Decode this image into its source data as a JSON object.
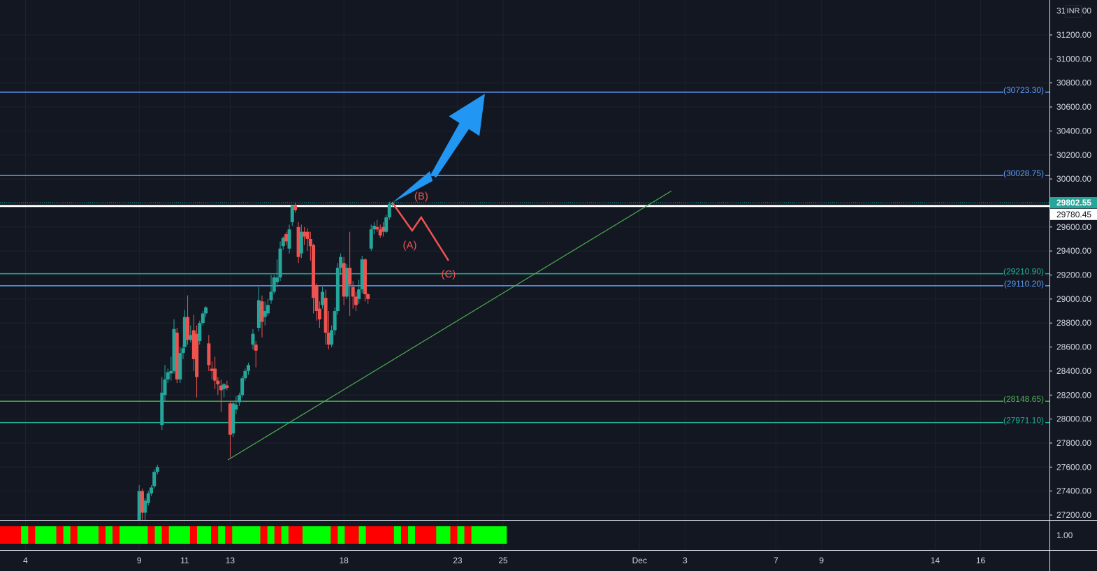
{
  "chart_data": {
    "type": "candlestick",
    "currency": "INR",
    "y_axis": {
      "min": 27150,
      "max": 31350,
      "ticks": [
        27200,
        27400,
        27600,
        27800,
        28000,
        28200,
        28400,
        28600,
        28800,
        29000,
        29200,
        29400,
        29600,
        29800,
        30000,
        30200,
        30400,
        30600,
        30800,
        31000,
        31200
      ],
      "tick_labels": [
        "27200.00",
        "27400.00",
        "27600.00",
        "27800.00",
        "28000.00",
        "28200.00",
        "28400.00",
        "28600.00",
        "28800.00",
        "29000.00",
        "29200.00",
        "29400.00",
        "29600.00",
        "29800.00",
        "30000.00",
        "30200.00",
        "30400.00",
        "30600.00",
        "30800.00",
        "31000.00",
        "31200.00"
      ],
      "top_label": "31400.00"
    },
    "x_axis": {
      "ticks": [
        {
          "label": "4",
          "day": 4
        },
        {
          "label": "9",
          "day": 9
        },
        {
          "label": "11",
          "day": 11
        },
        {
          "label": "13",
          "day": 13
        },
        {
          "label": "18",
          "day": 18
        },
        {
          "label": "23",
          "day": 23
        },
        {
          "label": "25",
          "day": 25
        },
        {
          "label": "Dec",
          "day": 31
        },
        {
          "label": "3",
          "day": 33
        },
        {
          "label": "7",
          "day": 37
        },
        {
          "label": "9",
          "day": 39
        },
        {
          "label": "14",
          "day": 44
        },
        {
          "label": "16",
          "day": 46
        }
      ]
    },
    "horizontal_levels": [
      {
        "value": 30723.3,
        "label": "(30723.30)",
        "color": "#5b9cf6"
      },
      {
        "value": 30028.75,
        "label": "(30028.75)",
        "color": "#5b9cf6"
      },
      {
        "value": 29210.9,
        "label": "(29210.90)",
        "color": "#22ab94"
      },
      {
        "value": 29110.2,
        "label": "(29110.20)",
        "color": "#5b9cf6"
      },
      {
        "value": 28148.65,
        "label": "(28148.65)",
        "color": "#4caf50"
      },
      {
        "value": 27971.1,
        "label": "(27971.10)",
        "color": "#22ab94"
      }
    ],
    "price_labels": [
      {
        "value": 29802.55,
        "label": "29802.55",
        "style": "last"
      },
      {
        "value": 29780.45,
        "label": "29780.45",
        "style": "white"
      }
    ],
    "candles": [
      {
        "day": 9.0,
        "o": 27150,
        "h": 27450,
        "c": 27400,
        "l": 27150
      },
      {
        "day": 9.13,
        "o": 27400,
        "h": 27420,
        "c": 27220,
        "l": 27150
      },
      {
        "day": 9.26,
        "o": 27220,
        "h": 27340,
        "c": 27320,
        "l": 27150
      },
      {
        "day": 9.4,
        "o": 27300,
        "h": 27400,
        "c": 27380,
        "l": 27280
      },
      {
        "day": 9.53,
        "o": 27380,
        "h": 27450,
        "c": 27430,
        "l": 27360
      },
      {
        "day": 9.66,
        "o": 27440,
        "h": 27580,
        "c": 27560,
        "l": 27420
      },
      {
        "day": 9.8,
        "o": 27560,
        "h": 27620,
        "c": 27600,
        "l": 27540
      },
      {
        "day": 10.0,
        "o": 27950,
        "h": 28350,
        "c": 28220,
        "l": 27910
      },
      {
        "day": 10.13,
        "o": 28200,
        "h": 28450,
        "c": 28330,
        "l": 28150
      },
      {
        "day": 10.26,
        "o": 28330,
        "h": 28420,
        "c": 28390,
        "l": 28300
      },
      {
        "day": 10.4,
        "o": 28380,
        "h": 28520,
        "c": 28400,
        "l": 28320
      },
      {
        "day": 10.53,
        "o": 28400,
        "h": 28830,
        "c": 28750,
        "l": 28380
      },
      {
        "day": 10.66,
        "o": 28720,
        "h": 28760,
        "c": 28330,
        "l": 28300
      },
      {
        "day": 10.8,
        "o": 28330,
        "h": 28600,
        "c": 28550,
        "l": 28300
      },
      {
        "day": 10.93,
        "o": 28550,
        "h": 28620,
        "c": 28590,
        "l": 28500
      },
      {
        "day": 11.0,
        "o": 28600,
        "h": 28910,
        "c": 28850,
        "l": 28560
      },
      {
        "day": 11.13,
        "o": 28850,
        "h": 29030,
        "c": 28660,
        "l": 28620
      },
      {
        "day": 11.26,
        "o": 28660,
        "h": 28780,
        "c": 28700,
        "l": 28640
      },
      {
        "day": 11.4,
        "o": 28740,
        "h": 28870,
        "c": 28500,
        "l": 28400
      },
      {
        "day": 11.53,
        "o": 28710,
        "h": 28780,
        "c": 28350,
        "l": 28180
      },
      {
        "day": 11.66,
        "o": 28650,
        "h": 28820,
        "c": 28800,
        "l": 28620
      },
      {
        "day": 11.8,
        "o": 28800,
        "h": 28900,
        "c": 28880,
        "l": 28780
      },
      {
        "day": 11.93,
        "o": 28880,
        "h": 28940,
        "c": 28930,
        "l": 28850
      },
      {
        "day": 12.06,
        "o": 28630,
        "h": 28700,
        "c": 28450,
        "l": 28400
      },
      {
        "day": 12.2,
        "o": 28420,
        "h": 28480,
        "c": 28400,
        "l": 28330
      },
      {
        "day": 12.33,
        "o": 28420,
        "h": 28520,
        "c": 28320,
        "l": 28250
      },
      {
        "day": 12.46,
        "o": 28320,
        "h": 28350,
        "c": 28290,
        "l": 28200
      },
      {
        "day": 12.6,
        "o": 28280,
        "h": 28330,
        "c": 28240,
        "l": 28060
      },
      {
        "day": 12.73,
        "o": 28250,
        "h": 28300,
        "c": 28290,
        "l": 28180
      },
      {
        "day": 12.86,
        "o": 28280,
        "h": 28320,
        "c": 28260,
        "l": 28240
      },
      {
        "day": 13.0,
        "o": 28130,
        "h": 28150,
        "c": 27870,
        "l": 27680
      },
      {
        "day": 13.13,
        "o": 27880,
        "h": 28150,
        "c": 28130,
        "l": 27850
      },
      {
        "day": 13.26,
        "o": 28080,
        "h": 28190,
        "c": 28120,
        "l": 28040
      },
      {
        "day": 13.4,
        "o": 28140,
        "h": 28220,
        "c": 28200,
        "l": 28110
      },
      {
        "day": 13.53,
        "o": 28200,
        "h": 28360,
        "c": 28340,
        "l": 28180
      },
      {
        "day": 13.66,
        "o": 28340,
        "h": 28420,
        "c": 28400,
        "l": 28320
      },
      {
        "day": 13.8,
        "o": 28400,
        "h": 28470,
        "c": 28450,
        "l": 28370
      },
      {
        "day": 14.0,
        "o": 28620,
        "h": 28750,
        "c": 28710,
        "l": 28580
      },
      {
        "day": 14.13,
        "o": 28620,
        "h": 28650,
        "c": 28570,
        "l": 28430
      },
      {
        "day": 14.26,
        "o": 28760,
        "h": 29100,
        "c": 28990,
        "l": 28730
      },
      {
        "day": 14.4,
        "o": 28980,
        "h": 29030,
        "c": 28810,
        "l": 28680
      },
      {
        "day": 14.53,
        "o": 28850,
        "h": 28980,
        "c": 28900,
        "l": 28780
      },
      {
        "day": 14.66,
        "o": 28880,
        "h": 29000,
        "c": 28950,
        "l": 28860
      },
      {
        "day": 14.8,
        "o": 28990,
        "h": 29200,
        "c": 29060,
        "l": 28960
      },
      {
        "day": 14.93,
        "o": 29060,
        "h": 29200,
        "c": 29180,
        "l": 29040
      },
      {
        "day": 15.06,
        "o": 29140,
        "h": 29330,
        "c": 29180,
        "l": 29100
      },
      {
        "day": 15.2,
        "o": 29180,
        "h": 29480,
        "c": 29420,
        "l": 29150
      },
      {
        "day": 15.33,
        "o": 29440,
        "h": 29520,
        "c": 29510,
        "l": 29410
      },
      {
        "day": 15.46,
        "o": 29540,
        "h": 29560,
        "c": 29480,
        "l": 29450
      },
      {
        "day": 15.6,
        "o": 29420,
        "h": 29620,
        "c": 29580,
        "l": 29380
      },
      {
        "day": 15.73,
        "o": 29640,
        "h": 29780,
        "c": 29780,
        "l": 29610
      },
      {
        "day": 15.86,
        "o": 29780,
        "h": 29800,
        "c": 29740,
        "l": 29720
      },
      {
        "day": 16.0,
        "o": 29600,
        "h": 29640,
        "c": 29350,
        "l": 29300
      },
      {
        "day": 16.13,
        "o": 29380,
        "h": 29620,
        "c": 29560,
        "l": 29340
      },
      {
        "day": 16.26,
        "o": 29560,
        "h": 29600,
        "c": 29520,
        "l": 29450
      },
      {
        "day": 16.4,
        "o": 29560,
        "h": 29590,
        "c": 29500,
        "l": 29400
      },
      {
        "day": 16.53,
        "o": 29500,
        "h": 29560,
        "c": 29440,
        "l": 29320
      },
      {
        "day": 16.66,
        "o": 29450,
        "h": 29460,
        "c": 29010,
        "l": 28880
      },
      {
        "day": 16.8,
        "o": 29110,
        "h": 29130,
        "c": 28900,
        "l": 28820
      },
      {
        "day": 16.93,
        "o": 28920,
        "h": 28980,
        "c": 28830,
        "l": 28760
      },
      {
        "day": 17.06,
        "o": 28950,
        "h": 29100,
        "c": 29060,
        "l": 28920
      },
      {
        "day": 17.2,
        "o": 29010,
        "h": 29080,
        "c": 28720,
        "l": 28620
      },
      {
        "day": 17.33,
        "o": 28720,
        "h": 28900,
        "c": 28620,
        "l": 28580
      },
      {
        "day": 17.46,
        "o": 28620,
        "h": 28780,
        "c": 28740,
        "l": 28600
      },
      {
        "day": 17.6,
        "o": 28740,
        "h": 28930,
        "c": 28900,
        "l": 28700
      },
      {
        "day": 17.73,
        "o": 28900,
        "h": 29300,
        "c": 29260,
        "l": 28870
      },
      {
        "day": 17.86,
        "o": 29260,
        "h": 29380,
        "c": 29350,
        "l": 29200
      },
      {
        "day": 18.0,
        "o": 29300,
        "h": 29350,
        "c": 29020,
        "l": 28950
      },
      {
        "day": 18.13,
        "o": 29020,
        "h": 29290,
        "c": 29260,
        "l": 29000
      },
      {
        "day": 18.26,
        "o": 29260,
        "h": 29560,
        "c": 29120,
        "l": 28860
      },
      {
        "day": 18.4,
        "o": 29100,
        "h": 29150,
        "c": 29020,
        "l": 28920
      },
      {
        "day": 18.53,
        "o": 29020,
        "h": 29060,
        "c": 28950,
        "l": 28900
      },
      {
        "day": 18.66,
        "o": 29000,
        "h": 29160,
        "c": 29080,
        "l": 28960
      },
      {
        "day": 18.8,
        "o": 29080,
        "h": 29360,
        "c": 29330,
        "l": 29050
      },
      {
        "day": 18.93,
        "o": 29330,
        "h": 29340,
        "c": 29040,
        "l": 28980
      },
      {
        "day": 19.06,
        "o": 29040,
        "h": 29050,
        "c": 29000,
        "l": 28960
      },
      {
        "day": 19.2,
        "o": 29420,
        "h": 29620,
        "c": 29580,
        "l": 29400
      },
      {
        "day": 19.33,
        "o": 29580,
        "h": 29640,
        "c": 29610,
        "l": 29540
      },
      {
        "day": 19.46,
        "o": 29600,
        "h": 29660,
        "c": 29580,
        "l": 29560
      },
      {
        "day": 19.6,
        "o": 29580,
        "h": 29620,
        "c": 29530,
        "l": 29510
      },
      {
        "day": 19.73,
        "o": 29600,
        "h": 29640,
        "c": 29560,
        "l": 29520
      },
      {
        "day": 19.86,
        "o": 29560,
        "h": 29700,
        "c": 29680,
        "l": 29550
      },
      {
        "day": 20.0,
        "o": 29680,
        "h": 29810,
        "c": 29790,
        "l": 29660
      },
      {
        "day": 20.13,
        "o": 29790,
        "h": 29810,
        "c": 29802.55,
        "l": 29770
      }
    ],
    "trendline": {
      "from": {
        "day": 12.9,
        "value": 27660
      },
      "to": {
        "day": 32.4,
        "value": 29900
      },
      "color": "#4caf50"
    },
    "projection_bullish": {
      "points": [
        {
          "day": 20.13,
          "value": 29802.55
        },
        {
          "day": 21.9,
          "value": 30030
        },
        {
          "day": 24.2,
          "value": 30710
        }
      ],
      "color": "#2196f3"
    },
    "projection_bearish": {
      "points": [
        {
          "day": 20.13,
          "value": 29802.55
        },
        {
          "day": 21.0,
          "value": 29570
        },
        {
          "day": 21.4,
          "value": 29680
        },
        {
          "day": 22.6,
          "value": 29320
        }
      ],
      "color": "#f05350"
    },
    "wave_labels": [
      {
        "text": "(A)",
        "day": 20.9,
        "value": 29420
      },
      {
        "text": "(B)",
        "day": 21.4,
        "value": 29830
      },
      {
        "text": "(C)",
        "day": 22.6,
        "value": 29180
      }
    ],
    "indicator": {
      "label": "1.00",
      "colors": [
        "R",
        "R",
        "R",
        "G",
        "R",
        "G",
        "G",
        "G",
        "R",
        "G",
        "R",
        "G",
        "G",
        "G",
        "R",
        "G",
        "R",
        "G",
        "G",
        "G",
        "G",
        "R",
        "G",
        "R",
        "G",
        "G",
        "G",
        "R",
        "G",
        "G",
        "R",
        "G",
        "R",
        "G",
        "G",
        "G",
        "G",
        "R",
        "G",
        "R",
        "G",
        "R",
        "R",
        "G",
        "G",
        "G",
        "G",
        "R",
        "G",
        "R",
        "R",
        "G",
        "R",
        "R",
        "R",
        "R",
        "G",
        "R",
        "G",
        "R",
        "R",
        "R",
        "G",
        "G",
        "R",
        "G",
        "R",
        "G",
        "G",
        "G",
        "G",
        "G"
      ]
    },
    "grid": true
  }
}
